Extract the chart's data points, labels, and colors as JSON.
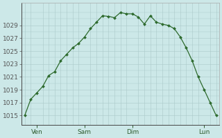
{
  "x_values": [
    0,
    1,
    2,
    3,
    4,
    5,
    6,
    7,
    8,
    9,
    10,
    11,
    12,
    13,
    14,
    15,
    16,
    17,
    18,
    19,
    20,
    21,
    22,
    23,
    24,
    25,
    26,
    27,
    28,
    29,
    30,
    31,
    32
  ],
  "y_values": [
    1015.0,
    1017.5,
    1018.5,
    1019.5,
    1021.2,
    1021.8,
    1023.5,
    1024.5,
    1025.5,
    1026.2,
    1027.2,
    1028.5,
    1029.5,
    1030.5,
    1030.4,
    1030.2,
    1031.0,
    1030.8,
    1030.8,
    1030.3,
    1029.2,
    1030.5,
    1029.5,
    1029.2,
    1029.0,
    1028.5,
    1027.2,
    1025.5,
    1023.5,
    1021.0,
    1019.0,
    1017.0,
    1015.0
  ],
  "x_tick_positions": [
    0,
    8,
    16,
    24,
    32
  ],
  "x_tick_labels_pos": [
    2,
    10,
    18,
    30
  ],
  "x_tick_labels": [
    "Ven",
    "Sam",
    "Dim",
    "Lun"
  ],
  "y_tick_positions": [
    1015,
    1017,
    1019,
    1021,
    1023,
    1025,
    1027,
    1029
  ],
  "ylim": [
    1013.5,
    1032.5
  ],
  "xlim": [
    -0.5,
    32.5
  ],
  "line_color": "#2d6a2d",
  "marker_color": "#2d6a2d",
  "bg_color": "#cce8e8",
  "grid_color_major": "#aac8c8",
  "grid_color_minor": "#c0dada",
  "font_size": 6.5
}
